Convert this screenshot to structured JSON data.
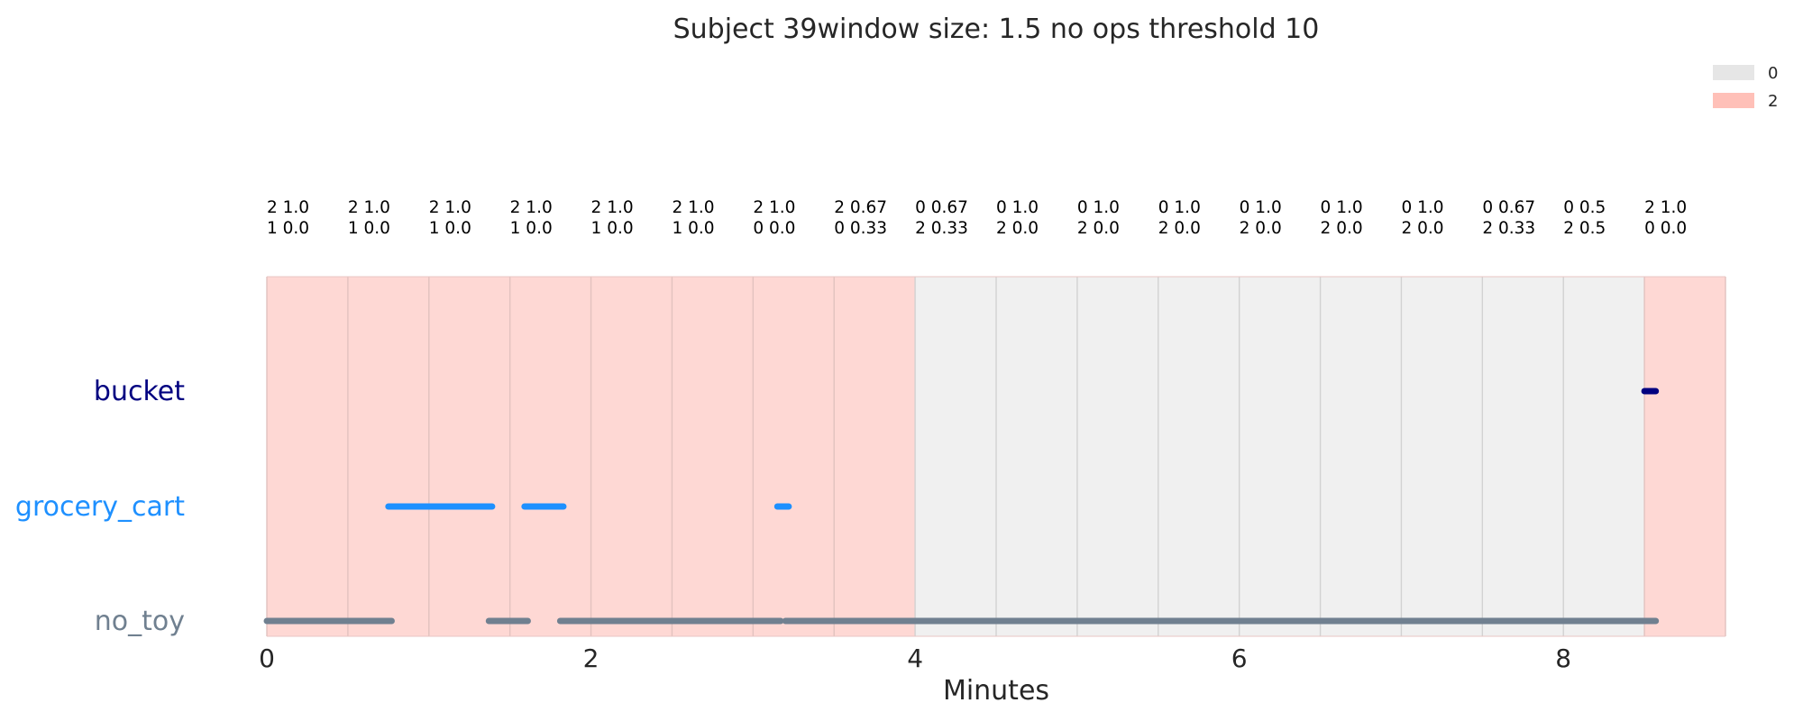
{
  "chart_data": {
    "type": "timeline",
    "title": "Subject 39window size: 1.5 no ops threshold 10",
    "xlabel": "Minutes",
    "xlim": [
      0,
      9
    ],
    "xticks": [
      0,
      2,
      4,
      6,
      8
    ],
    "legend": {
      "placement": "top-right",
      "entries": [
        {
          "label": "0",
          "color": "#e6e6e6"
        },
        {
          "label": "2",
          "color": "#ffc0b8"
        }
      ]
    },
    "categories": [
      {
        "name": "bucket",
        "color": "#000080"
      },
      {
        "name": "grocery_cart",
        "color": "#1e90ff"
      },
      {
        "name": "no_toy",
        "color": "#708090"
      }
    ],
    "windows": [
      {
        "start": 0.0,
        "end": 0.5,
        "state": "2",
        "line1": "2 1.0",
        "line2": "1 0.0"
      },
      {
        "start": 0.5,
        "end": 1.0,
        "state": "2",
        "line1": "2 1.0",
        "line2": "1 0.0"
      },
      {
        "start": 1.0,
        "end": 1.5,
        "state": "2",
        "line1": "2 1.0",
        "line2": "1 0.0"
      },
      {
        "start": 1.5,
        "end": 2.0,
        "state": "2",
        "line1": "2 1.0",
        "line2": "1 0.0"
      },
      {
        "start": 2.0,
        "end": 2.5,
        "state": "2",
        "line1": "2 1.0",
        "line2": "1 0.0"
      },
      {
        "start": 2.5,
        "end": 3.0,
        "state": "2",
        "line1": "2 1.0",
        "line2": "1 0.0"
      },
      {
        "start": 3.0,
        "end": 3.5,
        "state": "2",
        "line1": "2 1.0",
        "line2": "0 0.0"
      },
      {
        "start": 3.5,
        "end": 4.0,
        "state": "2",
        "line1": "2 0.67",
        "line2": "0 0.33"
      },
      {
        "start": 4.0,
        "end": 4.5,
        "state": "0",
        "line1": "0 0.67",
        "line2": "2 0.33"
      },
      {
        "start": 4.5,
        "end": 5.0,
        "state": "0",
        "line1": "0 1.0",
        "line2": "2 0.0"
      },
      {
        "start": 5.0,
        "end": 5.5,
        "state": "0",
        "line1": "0 1.0",
        "line2": "2 0.0"
      },
      {
        "start": 5.5,
        "end": 6.0,
        "state": "0",
        "line1": "0 1.0",
        "line2": "2 0.0"
      },
      {
        "start": 6.0,
        "end": 6.5,
        "state": "0",
        "line1": "0 1.0",
        "line2": "2 0.0"
      },
      {
        "start": 6.5,
        "end": 7.0,
        "state": "0",
        "line1": "0 1.0",
        "line2": "2 0.0"
      },
      {
        "start": 7.0,
        "end": 7.5,
        "state": "0",
        "line1": "0 1.0",
        "line2": "2 0.0"
      },
      {
        "start": 7.5,
        "end": 8.0,
        "state": "0",
        "line1": "0 0.67",
        "line2": "2 0.33"
      },
      {
        "start": 8.0,
        "end": 8.5,
        "state": "0",
        "line1": "0 0.5",
        "line2": "2 0.5"
      },
      {
        "start": 8.5,
        "end": 9.0,
        "state": "2",
        "line1": "2 1.0",
        "line2": "0 0.0"
      }
    ],
    "segments": [
      {
        "category": "bucket",
        "start": 8.5,
        "end": 8.57
      },
      {
        "category": "grocery_cart",
        "start": 0.75,
        "end": 1.39
      },
      {
        "category": "grocery_cart",
        "start": 1.59,
        "end": 1.83
      },
      {
        "category": "grocery_cart",
        "start": 3.15,
        "end": 3.22
      },
      {
        "category": "no_toy",
        "start": 0.0,
        "end": 0.77
      },
      {
        "category": "no_toy",
        "start": 1.37,
        "end": 1.61
      },
      {
        "category": "no_toy",
        "start": 1.81,
        "end": 3.17
      },
      {
        "category": "no_toy",
        "start": 3.2,
        "end": 8.57
      }
    ]
  }
}
